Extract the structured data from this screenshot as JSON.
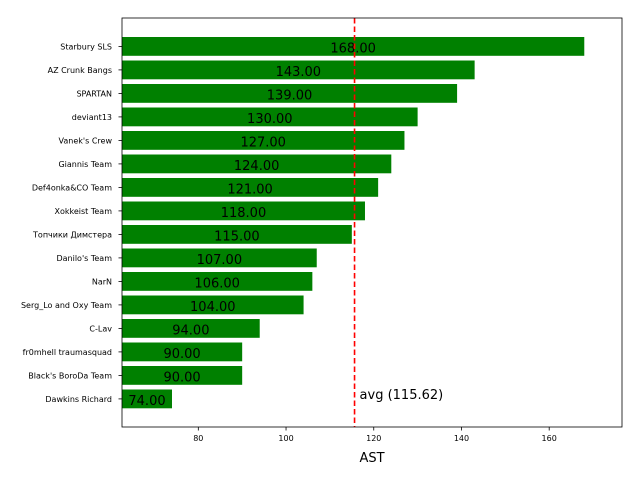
{
  "chart_data": {
    "type": "bar",
    "orientation": "horizontal",
    "categories": [
      "Starbury SLS",
      "AZ Crunk Bangs",
      "SPARTAN",
      "deviant13",
      "Vanek's Crew",
      "Giannis Team",
      "Def4onka&CO Team",
      "Xokkeist Team",
      "Топчики Димстера",
      "Danilo's Team",
      "NarN",
      "Serg_Lo and Oxy Team",
      "C-Lav",
      "fr0mhell traumasquad",
      "Black's BoroDa Team",
      "Dawkins Richard"
    ],
    "values": [
      168,
      143,
      139,
      130,
      127,
      124,
      121,
      118,
      115,
      107,
      106,
      104,
      94,
      90,
      90,
      74
    ],
    "data_labels": [
      "168.00",
      "143.00",
      "139.00",
      "130.00",
      "127.00",
      "124.00",
      "121.00",
      "118.00",
      "115.00",
      "107.00",
      "106.00",
      "104.00",
      "94.00",
      "90.00",
      "90.00",
      "74.00"
    ],
    "xlabel": "AST",
    "xlim": [
      62.6,
      176.6
    ],
    "xticks": [
      80,
      100,
      120,
      140,
      160
    ],
    "average": 115.62,
    "average_label": "avg (115.62)",
    "bar_color": "#008000",
    "avg_line_color": "#ff0000",
    "grid": false
  }
}
